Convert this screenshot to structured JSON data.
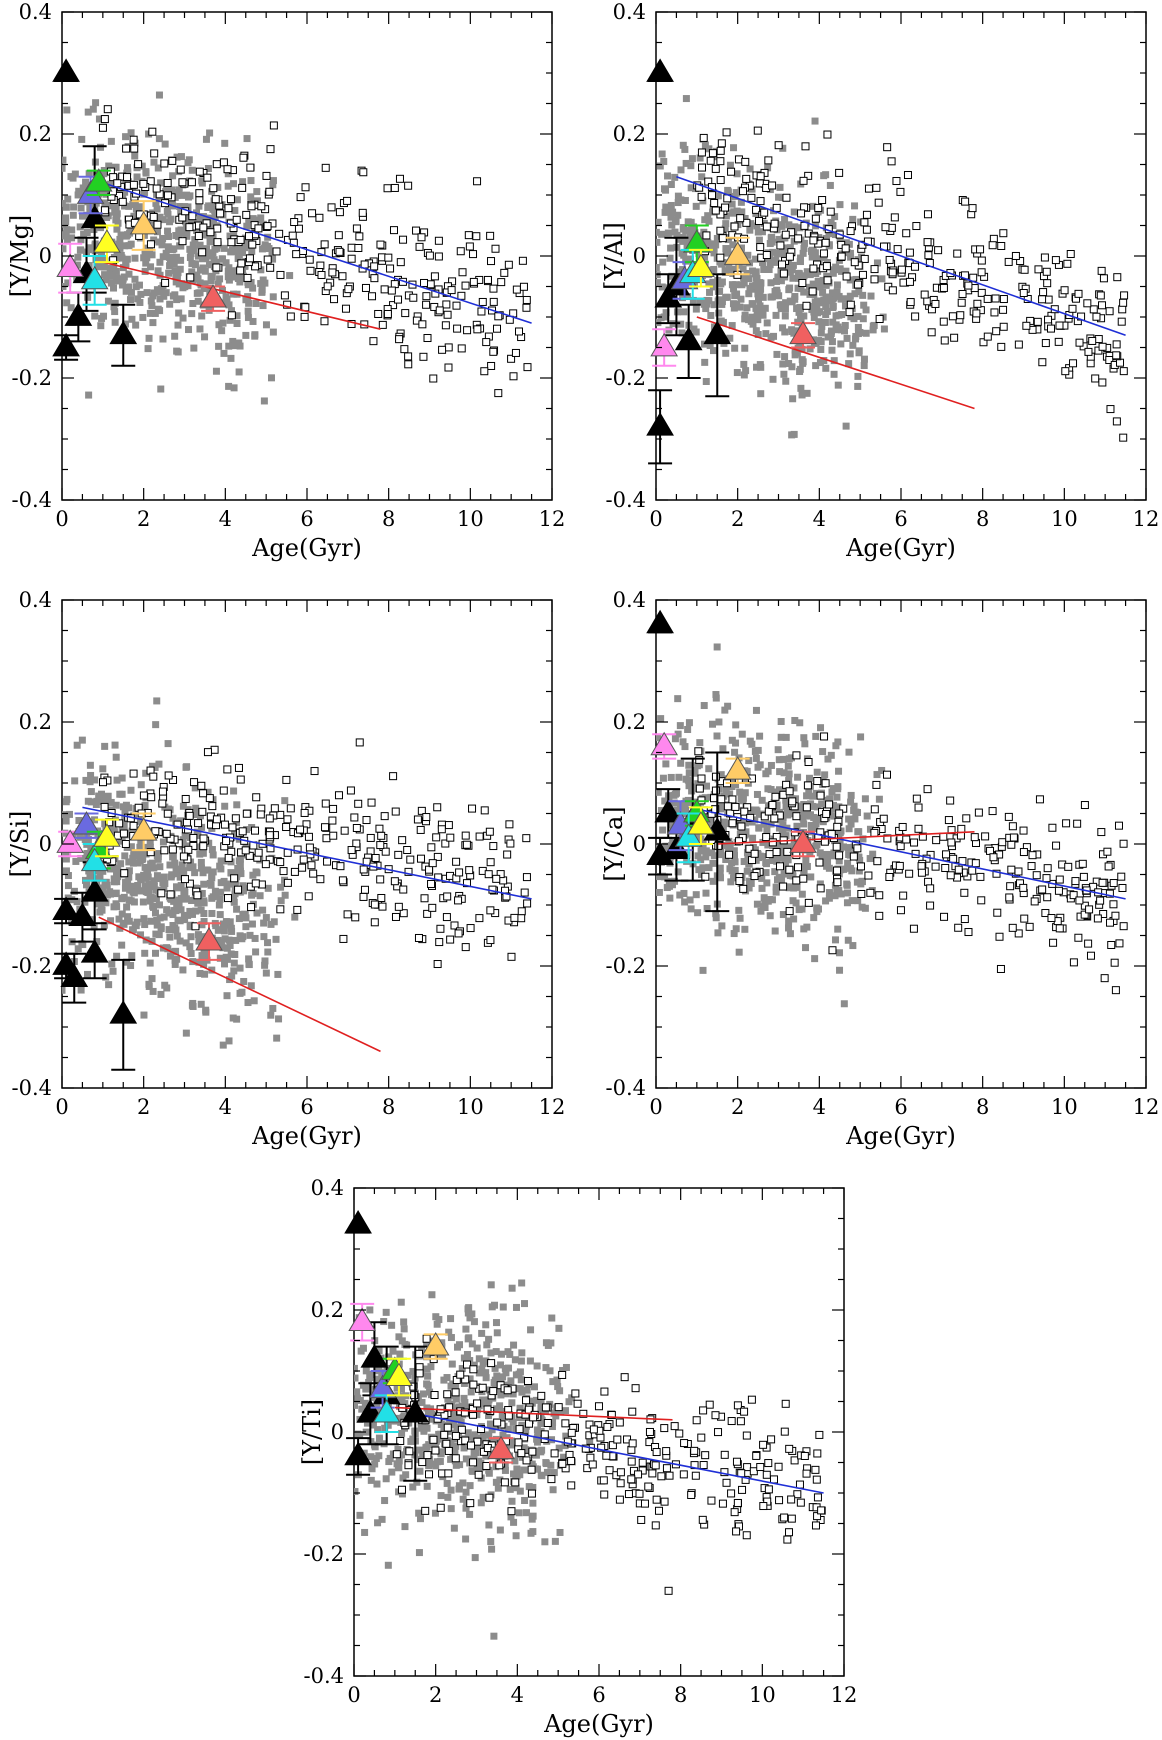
{
  "chart_data": [
    {
      "type": "scatter",
      "ylabel": "[Y/Mg]",
      "xlabel": "Age(Gyr)",
      "xlim": [
        0,
        12
      ],
      "ylim": [
        -0.4,
        0.4
      ],
      "xticks": [
        "0",
        "2",
        "4",
        "6",
        "8",
        "10",
        "12"
      ],
      "yticks": [
        "-0.4",
        "-0.2",
        "0",
        "0.2",
        "0.4"
      ],
      "fit_lines": [
        {
          "name": "thin disk fit",
          "color": "#1f2fd6",
          "x": [
            1.0,
            11.5
          ],
          "y": [
            0.12,
            -0.11
          ]
        },
        {
          "name": "thick disk fit",
          "color": "#e02020",
          "x": [
            1.0,
            7.8
          ],
          "y": [
            -0.01,
            -0.12
          ]
        }
      ],
      "clusters": [
        {
          "name": "black-1",
          "color": "#000000",
          "x": 0.1,
          "y": 0.3,
          "err": 0.0
        },
        {
          "name": "black-2",
          "color": "#000000",
          "x": 0.1,
          "y": -0.15,
          "err": 0.02
        },
        {
          "name": "black-3",
          "color": "#000000",
          "x": 0.4,
          "y": -0.1,
          "err": 0.04
        },
        {
          "name": "black-4",
          "color": "#000000",
          "x": 0.6,
          "y": -0.03,
          "err": 0.06
        },
        {
          "name": "black-5",
          "color": "#000000",
          "x": 0.8,
          "y": 0.06,
          "err": 0.12
        },
        {
          "name": "black-6",
          "color": "#000000",
          "x": 1.5,
          "y": -0.13,
          "err": 0.05
        },
        {
          "name": "violet",
          "color": "#ff88ee",
          "x": 0.2,
          "y": -0.02,
          "err": 0.04
        },
        {
          "name": "blue",
          "color": "#6a6ae0",
          "x": 0.7,
          "y": 0.1,
          "err": 0.03
        },
        {
          "name": "green",
          "color": "#22d022",
          "x": 0.9,
          "y": 0.12,
          "err": 0.02
        },
        {
          "name": "cyan",
          "color": "#22e0e6",
          "x": 0.8,
          "y": -0.04,
          "err": 0.04
        },
        {
          "name": "yellow",
          "color": "#ffff22",
          "x": 1.1,
          "y": 0.02,
          "err": 0.03
        },
        {
          "name": "orange",
          "color": "#ffcc66",
          "x": 2.0,
          "y": 0.05,
          "err": 0.04
        },
        {
          "name": "red",
          "color": "#f06060",
          "x": 3.7,
          "y": -0.07,
          "err": 0.02
        }
      ]
    },
    {
      "type": "scatter",
      "ylabel": "[Y/Al]",
      "xlabel": "Age(Gyr)",
      "xlim": [
        0,
        12
      ],
      "ylim": [
        -0.4,
        0.4
      ],
      "xticks": [
        "0",
        "2",
        "4",
        "6",
        "8",
        "10",
        "12"
      ],
      "yticks": [
        "-0.4",
        "-0.2",
        "0",
        "0.2",
        "0.4"
      ],
      "fit_lines": [
        {
          "name": "thin disk fit",
          "color": "#1f2fd6",
          "x": [
            0.5,
            11.5
          ],
          "y": [
            0.13,
            -0.13
          ]
        },
        {
          "name": "thick disk fit",
          "color": "#e02020",
          "x": [
            1.0,
            7.8
          ],
          "y": [
            -0.1,
            -0.25
          ]
        }
      ],
      "clusters": [
        {
          "name": "black-1",
          "color": "#000000",
          "x": 0.1,
          "y": 0.3,
          "err": 0.0
        },
        {
          "name": "black-2",
          "color": "#000000",
          "x": 0.1,
          "y": -0.28,
          "err": 0.06
        },
        {
          "name": "black-3",
          "color": "#000000",
          "x": 0.3,
          "y": -0.07,
          "err": 0.04
        },
        {
          "name": "black-4",
          "color": "#000000",
          "x": 0.5,
          "y": -0.05,
          "err": 0.08
        },
        {
          "name": "black-5",
          "color": "#000000",
          "x": 0.8,
          "y": -0.14,
          "err": 0.06
        },
        {
          "name": "black-6",
          "color": "#000000",
          "x": 1.5,
          "y": -0.13,
          "err": 0.1
        },
        {
          "name": "violet",
          "color": "#ff88ee",
          "x": 0.2,
          "y": -0.15,
          "err": 0.03
        },
        {
          "name": "blue",
          "color": "#6a6ae0",
          "x": 0.7,
          "y": -0.04,
          "err": 0.03
        },
        {
          "name": "green",
          "color": "#22d022",
          "x": 1.0,
          "y": 0.02,
          "err": 0.03
        },
        {
          "name": "cyan",
          "color": "#22e0e6",
          "x": 0.9,
          "y": -0.03,
          "err": 0.04
        },
        {
          "name": "yellow",
          "color": "#ffff22",
          "x": 1.1,
          "y": -0.02,
          "err": 0.03
        },
        {
          "name": "orange",
          "color": "#ffcc66",
          "x": 2.0,
          "y": 0.0,
          "err": 0.03
        },
        {
          "name": "red",
          "color": "#f06060",
          "x": 3.6,
          "y": -0.13,
          "err": 0.02
        }
      ]
    },
    {
      "type": "scatter",
      "ylabel": "[Y/Si]",
      "xlabel": "Age(Gyr)",
      "xlim": [
        0,
        12
      ],
      "ylim": [
        -0.4,
        0.4
      ],
      "xticks": [
        "0",
        "2",
        "4",
        "6",
        "8",
        "10",
        "12"
      ],
      "yticks": [
        "-0.4",
        "-0.2",
        "0",
        "0.2",
        "0.4"
      ],
      "fit_lines": [
        {
          "name": "thin disk fit",
          "color": "#1f2fd6",
          "x": [
            0.5,
            11.5
          ],
          "y": [
            0.06,
            -0.09
          ]
        },
        {
          "name": "thick disk fit",
          "color": "#e02020",
          "x": [
            0.9,
            7.8
          ],
          "y": [
            -0.12,
            -0.34
          ]
        }
      ],
      "clusters": [
        {
          "name": "black-1",
          "color": "#000000",
          "x": 0.1,
          "y": -0.11,
          "err": 0.02
        },
        {
          "name": "black-2",
          "color": "#000000",
          "x": 0.1,
          "y": -0.2,
          "err": 0.02
        },
        {
          "name": "black-3",
          "color": "#000000",
          "x": 0.3,
          "y": -0.22,
          "err": 0.04
        },
        {
          "name": "black-4",
          "color": "#000000",
          "x": 0.5,
          "y": -0.12,
          "err": 0.04
        },
        {
          "name": "black-5",
          "color": "#000000",
          "x": 0.8,
          "y": -0.08,
          "err": 0.05
        },
        {
          "name": "black-6",
          "color": "#000000",
          "x": 0.8,
          "y": -0.18,
          "err": 0.04
        },
        {
          "name": "black-7",
          "color": "#000000",
          "x": 1.5,
          "y": -0.28,
          "err": 0.09
        },
        {
          "name": "violet",
          "color": "#ff88ee",
          "x": 0.2,
          "y": 0.0,
          "err": 0.02
        },
        {
          "name": "blue",
          "color": "#6a6ae0",
          "x": 0.6,
          "y": 0.03,
          "err": 0.02
        },
        {
          "name": "green",
          "color": "#22d022",
          "x": 0.9,
          "y": -0.01,
          "err": 0.03
        },
        {
          "name": "cyan",
          "color": "#22e0e6",
          "x": 0.8,
          "y": -0.03,
          "err": 0.03
        },
        {
          "name": "yellow",
          "color": "#ffff22",
          "x": 1.1,
          "y": 0.01,
          "err": 0.03
        },
        {
          "name": "orange",
          "color": "#ffcc66",
          "x": 2.0,
          "y": 0.02,
          "err": 0.03
        },
        {
          "name": "red",
          "color": "#f06060",
          "x": 3.6,
          "y": -0.16,
          "err": 0.03
        }
      ]
    },
    {
      "type": "scatter",
      "ylabel": "[Y/Ca]",
      "xlabel": "Age(Gyr)",
      "xlim": [
        0,
        12
      ],
      "ylim": [
        -0.4,
        0.4
      ],
      "xticks": [
        "0",
        "2",
        "4",
        "6",
        "8",
        "10",
        "12"
      ],
      "yticks": [
        "-0.4",
        "-0.2",
        "0",
        "0.2",
        "0.4"
      ],
      "fit_lines": [
        {
          "name": "thin disk fit",
          "color": "#1f2fd6",
          "x": [
            0.8,
            11.5
          ],
          "y": [
            0.06,
            -0.09
          ]
        },
        {
          "name": "thick disk fit",
          "color": "#e02020",
          "x": [
            1.5,
            7.8
          ],
          "y": [
            0.0,
            0.02
          ]
        }
      ],
      "clusters": [
        {
          "name": "black-1",
          "color": "#000000",
          "x": 0.1,
          "y": 0.36,
          "err": 0.0
        },
        {
          "name": "black-2",
          "color": "#000000",
          "x": 0.1,
          "y": -0.02,
          "err": 0.03
        },
        {
          "name": "black-3",
          "color": "#000000",
          "x": 0.3,
          "y": 0.05,
          "err": 0.04
        },
        {
          "name": "black-4",
          "color": "#000000",
          "x": 0.5,
          "y": -0.01,
          "err": 0.05
        },
        {
          "name": "black-5",
          "color": "#000000",
          "x": 0.9,
          "y": 0.04,
          "err": 0.1
        },
        {
          "name": "black-6",
          "color": "#000000",
          "x": 1.5,
          "y": 0.02,
          "err": 0.13
        },
        {
          "name": "violet",
          "color": "#ff88ee",
          "x": 0.2,
          "y": 0.16,
          "err": 0.02
        },
        {
          "name": "blue",
          "color": "#6a6ae0",
          "x": 0.6,
          "y": 0.03,
          "err": 0.04
        },
        {
          "name": "green",
          "color": "#22d022",
          "x": 1.0,
          "y": 0.05,
          "err": 0.02
        },
        {
          "name": "cyan",
          "color": "#22e0e6",
          "x": 0.8,
          "y": 0.01,
          "err": 0.04
        },
        {
          "name": "yellow",
          "color": "#ffff22",
          "x": 1.1,
          "y": 0.03,
          "err": 0.03
        },
        {
          "name": "orange",
          "color": "#ffcc66",
          "x": 2.0,
          "y": 0.12,
          "err": 0.02
        },
        {
          "name": "red",
          "color": "#f06060",
          "x": 3.6,
          "y": 0.0,
          "err": 0.02
        }
      ]
    },
    {
      "type": "scatter",
      "ylabel": "[Y/Ti]",
      "xlabel": "Age(Gyr)",
      "xlim": [
        0,
        12
      ],
      "ylim": [
        -0.4,
        0.4
      ],
      "xticks": [
        "0",
        "2",
        "4",
        "6",
        "8",
        "10",
        "12"
      ],
      "yticks": [
        "-0.4",
        "-0.2",
        "0",
        "0.2",
        "0.4"
      ],
      "fit_lines": [
        {
          "name": "thin disk fit",
          "color": "#1f2fd6",
          "x": [
            1.5,
            11.5
          ],
          "y": [
            0.03,
            -0.1
          ]
        },
        {
          "name": "thick disk fit",
          "color": "#e02020",
          "x": [
            1.0,
            7.8
          ],
          "y": [
            0.04,
            0.02
          ]
        }
      ],
      "clusters": [
        {
          "name": "black-1",
          "color": "#000000",
          "x": 0.1,
          "y": 0.34,
          "err": 0.0
        },
        {
          "name": "black-2",
          "color": "#000000",
          "x": 0.1,
          "y": -0.04,
          "err": 0.03
        },
        {
          "name": "black-3",
          "color": "#000000",
          "x": 0.4,
          "y": 0.03,
          "err": 0.05
        },
        {
          "name": "black-4",
          "color": "#000000",
          "x": 0.5,
          "y": 0.12,
          "err": 0.06
        },
        {
          "name": "black-5",
          "color": "#000000",
          "x": 0.8,
          "y": 0.06,
          "err": 0.08
        },
        {
          "name": "black-6",
          "color": "#000000",
          "x": 1.5,
          "y": 0.03,
          "err": 0.11
        },
        {
          "name": "violet",
          "color": "#ff88ee",
          "x": 0.2,
          "y": 0.18,
          "err": 0.03
        },
        {
          "name": "blue",
          "color": "#6a6ae0",
          "x": 0.7,
          "y": 0.07,
          "err": 0.03
        },
        {
          "name": "green",
          "color": "#22d022",
          "x": 1.0,
          "y": 0.1,
          "err": 0.02
        },
        {
          "name": "cyan",
          "color": "#22e0e6",
          "x": 0.8,
          "y": 0.03,
          "err": 0.03
        },
        {
          "name": "yellow",
          "color": "#ffff22",
          "x": 1.1,
          "y": 0.09,
          "err": 0.03
        },
        {
          "name": "orange",
          "color": "#ffcc66",
          "x": 2.0,
          "y": 0.14,
          "err": 0.02
        },
        {
          "name": "red",
          "color": "#f06060",
          "x": 3.6,
          "y": -0.03,
          "err": 0.02
        }
      ]
    }
  ],
  "cloud_colors": {
    "thin_disk_filled": "#8c8c8c",
    "thick_disk_open": "#000000"
  }
}
